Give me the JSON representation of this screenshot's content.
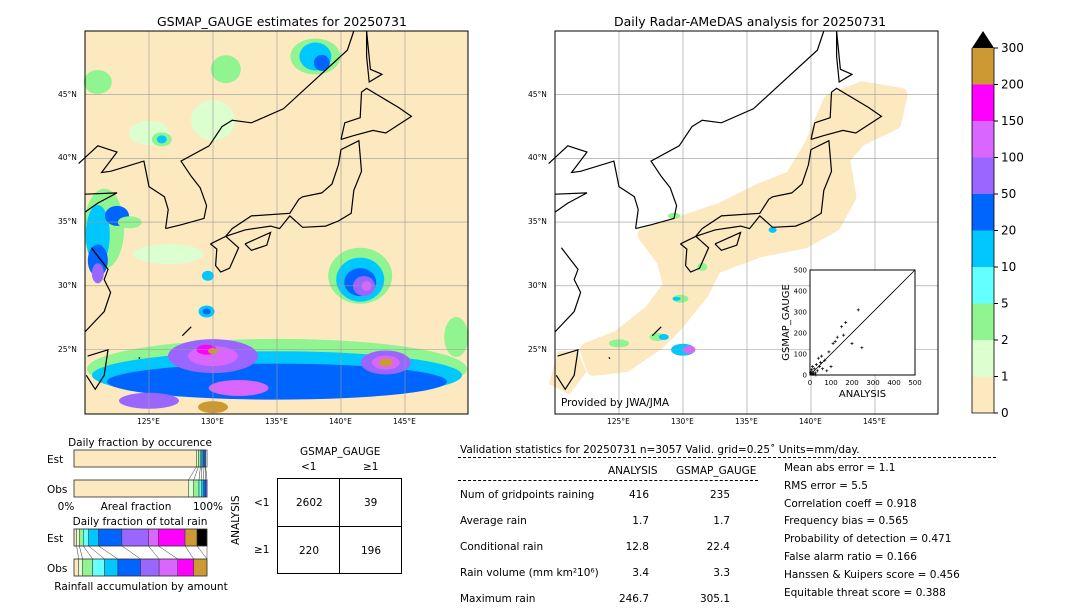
{
  "left_map": {
    "title": "GSMAP_GAUGE estimates for 20250731"
  },
  "right_map": {
    "title": "Daily Radar-AMeDAS analysis for 20250731",
    "credit": "Provided by JWA/JMA"
  },
  "lon_ticks": [
    "125°E",
    "130°E",
    "135°E",
    "140°E",
    "145°E"
  ],
  "lat_ticks": [
    "45°N",
    "40°N",
    "35°N",
    "30°N",
    "25°N"
  ],
  "colorbar": {
    "levels": [
      "0",
      "1",
      "2",
      "5",
      "10",
      "20",
      "50",
      "100",
      "150",
      "200",
      "300"
    ],
    "colors": [
      "#fde9c0",
      "#dcffd0",
      "#90f490",
      "#64ffff",
      "#00c8ff",
      "#0064ff",
      "#9966ff",
      "#d966ff",
      "#ff00ff",
      "#cc9933"
    ]
  },
  "chart_data": {
    "type": "scatter",
    "xlabel": "ANALYSIS",
    "ylabel": "GSMAP_GAUGE",
    "xlim": [
      0,
      500
    ],
    "ylim": [
      0,
      500
    ],
    "ticks": [
      "0",
      "100",
      "200",
      "300",
      "400",
      "500"
    ],
    "points": [
      [
        5,
        5
      ],
      [
        10,
        15
      ],
      [
        15,
        3
      ],
      [
        20,
        30
      ],
      [
        25,
        10
      ],
      [
        30,
        50
      ],
      [
        35,
        20
      ],
      [
        40,
        80
      ],
      [
        45,
        40
      ],
      [
        50,
        60
      ],
      [
        55,
        90
      ],
      [
        60,
        30
      ],
      [
        70,
        70
      ],
      [
        80,
        20
      ],
      [
        90,
        110
      ],
      [
        100,
        40
      ],
      [
        110,
        150
      ],
      [
        120,
        160
      ],
      [
        130,
        180
      ],
      [
        150,
        230
      ],
      [
        160,
        190
      ],
      [
        170,
        250
      ],
      [
        200,
        150
      ],
      [
        230,
        310
      ],
      [
        247,
        130
      ],
      [
        8,
        25
      ],
      [
        12,
        40
      ],
      [
        18,
        8
      ],
      [
        28,
        0
      ],
      [
        3,
        12
      ]
    ]
  },
  "occurrence": {
    "title": "Daily fraction by occurence",
    "est": "Est",
    "obs": "Obs",
    "x0": "0%",
    "x1": "100%",
    "xlabel": "Areal fraction",
    "est_fracs": [
      0.92,
      0.015,
      0.015,
      0.01,
      0.01,
      0.015,
      0.005
    ],
    "obs_fracs": [
      0.86,
      0.04,
      0.04,
      0.02,
      0.015,
      0.015,
      0.01
    ]
  },
  "total_rain": {
    "title": "Daily fraction of total rain",
    "est": "Est",
    "obs": "Obs",
    "xlabel": "Rainfall accumulation by amount",
    "est_fracs": [
      0.02,
      0.02,
      0.03,
      0.04,
      0.075,
      0.175,
      0.2,
      0.075,
      0.2,
      0.09,
      0.075
    ],
    "obs_fracs": [
      0.035,
      0.03,
      0.075,
      0.09,
      0.1,
      0.17,
      0.14,
      0.14,
      0.12,
      0.1,
      0
    ]
  },
  "contingency": {
    "col_title": "GSMAP_GAUGE",
    "row_title": "ANALYSIS",
    "lt1": "<1",
    "ge1": "≥1",
    "cells": [
      [
        "2602",
        "39"
      ],
      [
        "220",
        "196"
      ]
    ]
  },
  "stats": {
    "header": "Validation statistics for 20250731  n=3057 Valid. grid=0.25˚ Units=mm/day.",
    "col_analysis": "ANALYSIS",
    "col_gsmap": "GSMAP_GAUGE",
    "rows": [
      [
        "Num of gridpoints raining",
        "416",
        "235"
      ],
      [
        "Average rain",
        "1.7",
        "1.7"
      ],
      [
        "Conditional rain",
        "12.8",
        "22.4"
      ],
      [
        "Rain volume (mm km²10⁶)",
        "3.4",
        "3.3"
      ],
      [
        "Maximum rain",
        "246.7",
        "305.1"
      ]
    ],
    "scores": [
      "Mean abs error =    1.1",
      "RMS error =    5.5",
      "Correlation coeff =  0.918",
      "Frequency bias =  0.565",
      "Probability of detection =  0.471",
      "False alarm ratio =  0.166",
      "Hanssen & Kuipers score =  0.456",
      "Equitable threat score =  0.388"
    ]
  }
}
